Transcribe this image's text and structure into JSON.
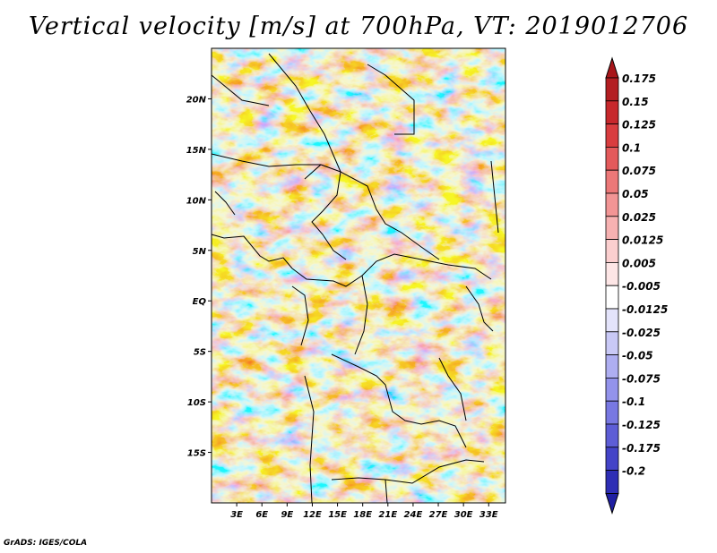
{
  "title": "Vertical velocity [m/s] at 700hPa, VT: 2019012706",
  "credit": "GrADS: IGES/COLA",
  "map": {
    "lon_range": [
      0,
      35
    ],
    "lat_range": [
      -20,
      25
    ],
    "lat_ticks": [
      {
        "value": 20,
        "label": "20N"
      },
      {
        "value": 15,
        "label": "15N"
      },
      {
        "value": 10,
        "label": "10N"
      },
      {
        "value": 5,
        "label": "5N"
      },
      {
        "value": 0,
        "label": "EQ"
      },
      {
        "value": -5,
        "label": "5S"
      },
      {
        "value": -10,
        "label": "10S"
      },
      {
        "value": -15,
        "label": "15S"
      }
    ],
    "lon_ticks": [
      {
        "value": 3,
        "label": "3E"
      },
      {
        "value": 6,
        "label": "6E"
      },
      {
        "value": 9,
        "label": "9E"
      },
      {
        "value": 12,
        "label": "12E"
      },
      {
        "value": 15,
        "label": "15E"
      },
      {
        "value": 18,
        "label": "18E"
      },
      {
        "value": 21,
        "label": "21E"
      },
      {
        "value": 24,
        "label": "24E"
      },
      {
        "value": 27,
        "label": "27E"
      },
      {
        "value": 30,
        "label": "30E"
      },
      {
        "value": 33,
        "label": "33E"
      }
    ]
  },
  "colorbar": {
    "levels": [
      {
        "label": "0.175",
        "color": "#b31e22"
      },
      {
        "label": "0.15",
        "color": "#c7282c"
      },
      {
        "label": "0.125",
        "color": "#d93d3f"
      },
      {
        "label": "0.1",
        "color": "#e45a5b"
      },
      {
        "label": "0.075",
        "color": "#ec7878"
      },
      {
        "label": "0.05",
        "color": "#f29595"
      },
      {
        "label": "0.025",
        "color": "#f7b2b2"
      },
      {
        "label": "0.0125",
        "color": "#fbcfcf"
      },
      {
        "label": "0.005",
        "color": "#fde6e6"
      },
      {
        "label": "-0.005",
        "color": "#ffffff"
      },
      {
        "label": "-0.0125",
        "color": "#e4e4fb"
      },
      {
        "label": "-0.025",
        "color": "#c9c9f6"
      },
      {
        "label": "-0.05",
        "color": "#aeaef1"
      },
      {
        "label": "-0.075",
        "color": "#9393eb"
      },
      {
        "label": "-0.1",
        "color": "#7878e2"
      },
      {
        "label": "-0.125",
        "color": "#5d5dd6"
      },
      {
        "label": "-0.175",
        "color": "#4444c8"
      },
      {
        "label": "-0.2",
        "color": "#2e2eb5"
      }
    ],
    "top_cap_color": "#a8161a",
    "bottom_cap_color": "#1f1fa2"
  }
}
